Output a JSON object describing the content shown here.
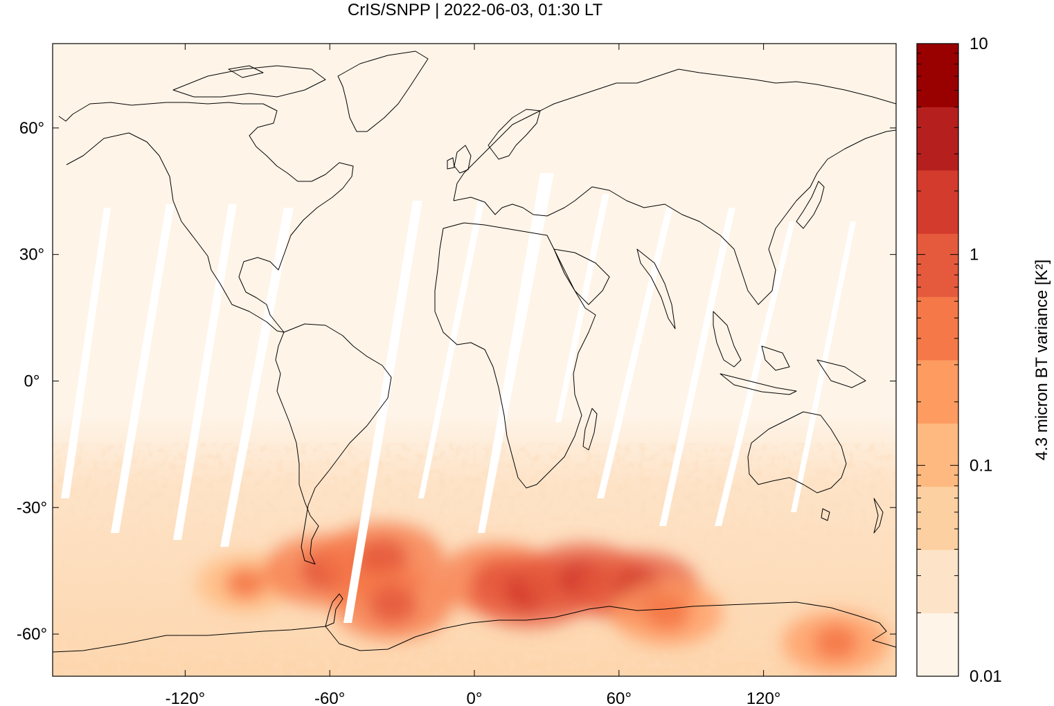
{
  "title": "CrIS/SNPP | 2022-06-03, 01:30 LT",
  "map": {
    "projection": "equirectangular",
    "lon_range": [
      -175,
      175
    ],
    "lat_range": [
      -70,
      80
    ],
    "x_ticks": [
      {
        "value": -120,
        "label": "-120°"
      },
      {
        "value": -60,
        "label": "-60°"
      },
      {
        "value": 0,
        "label": "0°"
      },
      {
        "value": 60,
        "label": "60°"
      },
      {
        "value": 120,
        "label": "120°"
      }
    ],
    "y_ticks": [
      {
        "value": 60,
        "label": "60°"
      },
      {
        "value": 30,
        "label": "30°"
      },
      {
        "value": 0,
        "label": "0°"
      },
      {
        "value": -30,
        "label": "-30°"
      },
      {
        "value": -60,
        "label": "-60°"
      }
    ],
    "background_color": "#fef4e8",
    "gap_color": "#ffffff",
    "coastline_color": "#000000"
  },
  "colorbar": {
    "label": "4.3 micron BT variance [K²]",
    "scale": "log",
    "range": [
      0.01,
      10
    ],
    "tick_labels": [
      {
        "value": 10,
        "label": "10"
      },
      {
        "value": 1,
        "label": "1"
      },
      {
        "value": 0.1,
        "label": "0.1"
      },
      {
        "value": 0.01,
        "label": "0.01"
      }
    ],
    "colors": [
      "#fef4e8",
      "#fde4c8",
      "#fdd0a2",
      "#fdb97f",
      "#fd9b61",
      "#f57848",
      "#e55a3d",
      "#d33b2c",
      "#b5201e",
      "#990000"
    ]
  },
  "hotspots": [
    {
      "lon": -95,
      "lat": -48,
      "level": 0.35
    },
    {
      "lon": -62,
      "lat": -45,
      "level": 1.0
    },
    {
      "lon": -38,
      "lat": -42,
      "level": 0.9
    },
    {
      "lon": -34,
      "lat": -53,
      "level": 0.8
    },
    {
      "lon": 10,
      "lat": -47,
      "level": 0.9
    },
    {
      "lon": 23,
      "lat": -50,
      "level": 1.6
    },
    {
      "lon": 45,
      "lat": -47,
      "level": 2.5
    },
    {
      "lon": 68,
      "lat": -49,
      "level": 1.8
    },
    {
      "lon": 80,
      "lat": -55,
      "level": 0.6
    },
    {
      "lon": 150,
      "lat": -62,
      "level": 0.5
    }
  ]
}
